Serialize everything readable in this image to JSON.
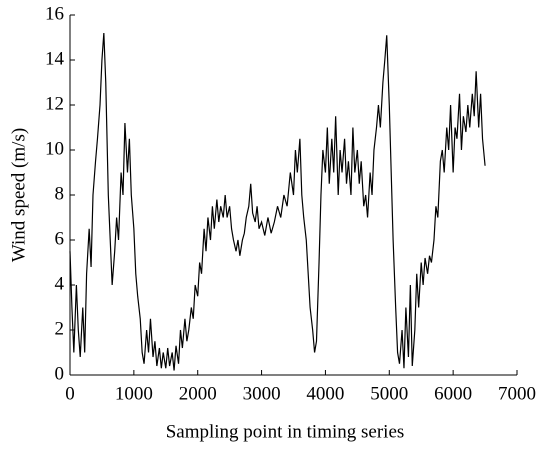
{
  "chart_data": {
    "type": "line",
    "xlabel": "Sampling point in timing series",
    "ylabel": "Wind speed (m/s)",
    "xlim": [
      0,
      7000
    ],
    "xticks": [
      0,
      1000,
      2000,
      3000,
      4000,
      5000,
      6000,
      7000
    ],
    "ylim": [
      0,
      16
    ],
    "yticks": [
      0,
      2,
      4,
      6,
      8,
      10,
      12,
      14,
      16
    ],
    "x": [
      0,
      30,
      60,
      100,
      130,
      160,
      200,
      230,
      260,
      300,
      330,
      360,
      400,
      430,
      470,
      500,
      530,
      560,
      600,
      630,
      660,
      700,
      730,
      760,
      800,
      830,
      860,
      900,
      930,
      960,
      1000,
      1030,
      1060,
      1100,
      1130,
      1160,
      1200,
      1230,
      1260,
      1300,
      1330,
      1360,
      1400,
      1430,
      1460,
      1500,
      1530,
      1560,
      1600,
      1630,
      1660,
      1700,
      1730,
      1760,
      1800,
      1830,
      1860,
      1900,
      1930,
      1960,
      2000,
      2030,
      2060,
      2100,
      2130,
      2160,
      2200,
      2230,
      2260,
      2300,
      2330,
      2360,
      2400,
      2430,
      2460,
      2500,
      2530,
      2560,
      2600,
      2630,
      2660,
      2700,
      2730,
      2760,
      2800,
      2830,
      2860,
      2900,
      2930,
      2960,
      3000,
      3050,
      3100,
      3150,
      3200,
      3250,
      3300,
      3350,
      3400,
      3450,
      3500,
      3530,
      3560,
      3600,
      3630,
      3660,
      3700,
      3730,
      3760,
      3800,
      3830,
      3860,
      3900,
      3930,
      3960,
      4000,
      4030,
      4060,
      4100,
      4130,
      4160,
      4200,
      4230,
      4260,
      4300,
      4330,
      4360,
      4400,
      4430,
      4460,
      4500,
      4530,
      4560,
      4600,
      4630,
      4660,
      4700,
      4730,
      4760,
      4800,
      4830,
      4860,
      4900,
      4930,
      4960,
      5000,
      5030,
      5060,
      5100,
      5130,
      5160,
      5200,
      5230,
      5260,
      5300,
      5330,
      5360,
      5400,
      5430,
      5460,
      5500,
      5530,
      5560,
      5600,
      5630,
      5660,
      5700,
      5730,
      5760,
      5800,
      5830,
      5860,
      5900,
      5930,
      5960,
      6000,
      6030,
      6060,
      6100,
      6130,
      6160,
      6200,
      6230,
      6260,
      6300,
      6330,
      6360,
      6400,
      6430,
      6460,
      6500
    ],
    "series": [
      {
        "name": "Wind speed",
        "color": "#000000",
        "values": [
          5.5,
          3,
          1,
          4,
          2,
          0.8,
          3,
          1,
          4.5,
          6.5,
          4.8,
          8,
          9.5,
          10.5,
          12,
          14,
          15.2,
          13,
          8,
          6,
          4,
          5.5,
          7,
          6,
          9,
          8,
          11.2,
          9,
          10.5,
          8,
          6.5,
          4.5,
          3.5,
          2.5,
          1,
          0.5,
          2,
          1,
          2.5,
          0.8,
          1.5,
          0.4,
          1.2,
          0.3,
          1,
          0.3,
          1.2,
          0.4,
          1,
          0.2,
          1.3,
          0.5,
          2,
          1.2,
          2.5,
          1.5,
          2,
          3,
          2.5,
          4,
          3.5,
          5,
          4.5,
          6.5,
          5.5,
          7,
          6,
          7.5,
          6.5,
          7.8,
          6.8,
          7.5,
          7,
          8,
          7,
          7.5,
          6.5,
          6,
          5.5,
          6,
          5.3,
          6,
          6.3,
          7,
          7.5,
          8.5,
          7.2,
          6.8,
          7.5,
          6.5,
          6.8,
          6.2,
          7,
          6.3,
          6.8,
          7.5,
          7,
          8,
          7.5,
          9,
          8,
          10,
          9,
          10.5,
          8,
          7,
          6,
          4.5,
          3,
          2,
          1,
          1.5,
          5,
          8,
          10,
          9,
          11,
          8.5,
          10.5,
          9,
          11.5,
          8,
          10,
          9,
          10.5,
          8.5,
          9.5,
          8,
          11,
          9,
          10,
          8.5,
          9.5,
          7.5,
          8,
          7,
          9,
          8,
          10,
          11,
          12,
          11,
          13,
          14,
          15.1,
          12,
          9,
          6,
          3,
          1,
          0.5,
          2,
          0.3,
          3,
          0.8,
          4,
          0.4,
          2,
          4.5,
          3,
          5,
          4,
          5.2,
          4.5,
          5.3,
          5,
          6,
          7.5,
          7,
          9.5,
          10,
          9,
          11,
          10,
          12,
          9,
          11,
          10.5,
          12.5,
          10,
          11.5,
          10.8,
          12,
          11,
          12.5,
          11.5,
          13.5,
          11,
          12.5,
          10.5,
          9.3
        ]
      }
    ]
  }
}
